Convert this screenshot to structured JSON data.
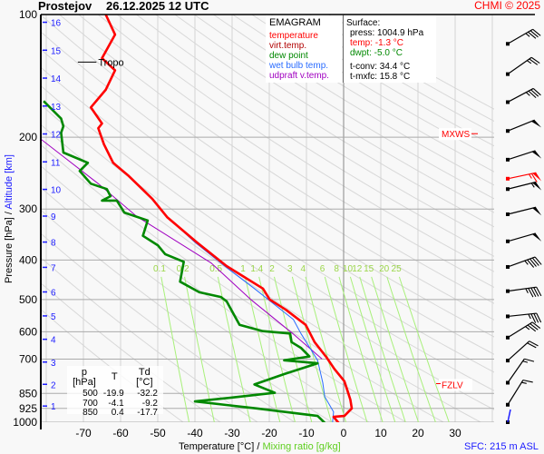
{
  "header": {
    "station": "Prostejov",
    "datetime": "26.12.2025 12 UTC",
    "copyright": "CHMI © 2025"
  },
  "legend": {
    "title": "EMAGRAM",
    "items": [
      {
        "label": "temperature",
        "color": "#ff0000"
      },
      {
        "label": "virt.temp.",
        "color": "#b00000"
      },
      {
        "label": "dew point",
        "color": "#008800"
      },
      {
        "label": "wet bulb temp.",
        "color": "#2a6cff"
      },
      {
        "label": "udpraft v.temp.",
        "color": "#a000c0"
      }
    ]
  },
  "surface": {
    "title": "Surface:",
    "press": "press: 1004.9 hPa",
    "temp": "temp: -1.3 °C",
    "dwpt": "dwpt: -5.0 °C",
    "tconv": "t-conv: 34.4 °C",
    "tmxfc": "t-mxfc: 15.8 °C"
  },
  "levels_table": {
    "headers": [
      "p [hPa]",
      "T",
      "Td [°C]"
    ],
    "rows": [
      [
        "500",
        "-19.9",
        "-32.2"
      ],
      [
        "700",
        "-4.1",
        "-9.2"
      ],
      [
        "850",
        "0.4",
        "-17.7"
      ]
    ]
  },
  "footer": {
    "sfc": "SFC: 215 m ASL"
  },
  "chart_data": {
    "type": "line",
    "title": "EMAGRAM",
    "xlabel": "Temperature [°C]",
    "xlabel_sep": "/",
    "xlabel2": "Mixing ratio [g/kg]",
    "ylabel": "Pressure [hPa]",
    "ylabel_sep": "/",
    "ylabel2": "Altitude [km]",
    "xlim": [
      -81.5,
      40.5
    ],
    "ylim": [
      1000,
      100
    ],
    "yscale": "log",
    "grid": true,
    "x_ticks": [
      -70,
      -60,
      -50,
      -40,
      -30,
      -20,
      -10,
      0,
      10,
      20,
      30
    ],
    "pressure_ticks": [
      100,
      200,
      300,
      400,
      500,
      600,
      700,
      850,
      925,
      1000
    ],
    "altitude_ticks_km": [
      1,
      2,
      3,
      4,
      5,
      6,
      7,
      8,
      9,
      10,
      11,
      12,
      13,
      14,
      15,
      16
    ],
    "mixing_ratio_lines": [
      "0.1",
      "0.2",
      "0.5",
      "1",
      "1.4",
      "2",
      "3",
      "4",
      "6",
      "8",
      "10",
      "12",
      "15",
      "20",
      "25"
    ],
    "series": [
      {
        "name": "temperature",
        "color": "#ff0000",
        "points": [
          [
            1004.9,
            -1.3
          ],
          [
            970,
            -2.7
          ],
          [
            965,
            0.2
          ],
          [
            925,
            2.2
          ],
          [
            880,
            1.8
          ],
          [
            835,
            1.0
          ],
          [
            793,
            0.2
          ],
          [
            740,
            -2.5
          ],
          [
            693,
            -4.6
          ],
          [
            636,
            -7.8
          ],
          [
            606,
            -9.0
          ],
          [
            577,
            -10.2
          ],
          [
            530,
            -15.5
          ],
          [
            500,
            -19.9
          ],
          [
            470,
            -21.7
          ],
          [
            414,
            -31.5
          ],
          [
            362,
            -39.5
          ],
          [
            314,
            -47.5
          ],
          [
            283,
            -51.5
          ],
          [
            248,
            -58
          ],
          [
            231,
            -62
          ],
          [
            208,
            -64.5
          ],
          [
            190,
            -66
          ],
          [
            185,
            -65
          ],
          [
            169,
            -68
          ],
          [
            153,
            -64
          ],
          [
            137,
            -61.5
          ],
          [
            128,
            -65
          ],
          [
            112,
            -61.5
          ],
          [
            100,
            -64
          ]
        ]
      },
      {
        "name": "dew point",
        "color": "#008800",
        "points": [
          [
            1004.9,
            -5.0
          ],
          [
            965,
            -7
          ],
          [
            925,
            -23.4
          ],
          [
            889,
            -40
          ],
          [
            870,
            -30
          ],
          [
            847,
            -18.5
          ],
          [
            808,
            -24
          ],
          [
            762,
            -16
          ],
          [
            717,
            -7
          ],
          [
            705,
            -16
          ],
          [
            690,
            -9.2
          ],
          [
            657,
            -11.5
          ],
          [
            636,
            -14
          ],
          [
            606,
            -14.4
          ],
          [
            598,
            -21.7
          ],
          [
            577,
            -28
          ],
          [
            505,
            -31.5
          ],
          [
            493,
            -33
          ],
          [
            480,
            -38.8
          ],
          [
            452,
            -44
          ],
          [
            404,
            -43
          ],
          [
            387,
            -48
          ],
          [
            368,
            -50
          ],
          [
            349,
            -54
          ],
          [
            320,
            -52.7
          ],
          [
            306,
            -59
          ],
          [
            286,
            -61
          ],
          [
            286,
            -65
          ],
          [
            279,
            -62.7
          ],
          [
            268,
            -63.7
          ],
          [
            260,
            -68
          ],
          [
            242,
            -71
          ],
          [
            231,
            -68.8
          ],
          [
            218,
            -75.4
          ],
          [
            195,
            -76
          ],
          [
            188,
            -75.4
          ],
          [
            180,
            -76
          ],
          [
            163,
            -80.7
          ]
        ]
      },
      {
        "name": "wet bulb temp.",
        "color": "#2a6cff",
        "points": [
          [
            1004.9,
            -3.0
          ],
          [
            943,
            -2.7
          ],
          [
            865,
            -5.1
          ],
          [
            800,
            -5.6
          ],
          [
            705,
            -7
          ],
          [
            606,
            -11.5
          ],
          [
            560,
            -13.5
          ],
          [
            470,
            -24
          ],
          [
            414,
            -32
          ],
          [
            362,
            -40
          ],
          [
            325,
            -45.6
          ]
        ]
      },
      {
        "name": "udpraft v.temp.",
        "color": "#a000c0",
        "points": [
          [
            700,
            -5.8
          ],
          [
            606,
            -13.7
          ],
          [
            500,
            -25
          ],
          [
            407,
            -35.6
          ],
          [
            312,
            -55.8
          ],
          [
            260,
            -66
          ],
          [
            202,
            -81.5
          ]
        ]
      }
    ],
    "annotations": [
      {
        "text": "Tropo",
        "pressure": 169,
        "color": "#000000"
      },
      {
        "text": "MXWS",
        "pressure": 268,
        "color": "#ff0000"
      },
      {
        "text": "FZLV",
        "pressure": 800,
        "color": "#ff0000"
      }
    ],
    "wind_barbs": [
      {
        "pressure": 118,
        "dir_deg": 60,
        "speed_kt": 35
      },
      {
        "pressure": 140,
        "dir_deg": 55,
        "speed_kt": 25
      },
      {
        "pressure": 164,
        "dir_deg": 62,
        "speed_kt": 35
      },
      {
        "pressure": 193,
        "dir_deg": 68,
        "speed_kt": 50
      },
      {
        "pressure": 227,
        "dir_deg": 72,
        "speed_kt": 50
      },
      {
        "pressure": 268,
        "dir_deg": 76,
        "speed_kt": 55
      },
      {
        "pressure": 309,
        "dir_deg": 76,
        "speed_kt": 50
      },
      {
        "pressure": 360,
        "dir_deg": 74,
        "speed_kt": 50
      },
      {
        "pressure": 416,
        "dir_deg": 70,
        "speed_kt": 45
      },
      {
        "pressure": 477,
        "dir_deg": 82,
        "speed_kt": 45
      },
      {
        "pressure": 550,
        "dir_deg": 84,
        "speed_kt": 35
      },
      {
        "pressure": 620,
        "dir_deg": 58,
        "speed_kt": 35
      },
      {
        "pressure": 706,
        "dir_deg": 48,
        "speed_kt": 20
      },
      {
        "pressure": 800,
        "dir_deg": 35,
        "speed_kt": 15
      },
      {
        "pressure": 906,
        "dir_deg": 32,
        "speed_kt": 15
      },
      {
        "pressure": 1000,
        "dir_deg": 20,
        "speed_kt": 0
      }
    ],
    "max_wind_barb": {
      "pressure": 262,
      "dir_deg": 78,
      "speed_kt": 65
    }
  }
}
